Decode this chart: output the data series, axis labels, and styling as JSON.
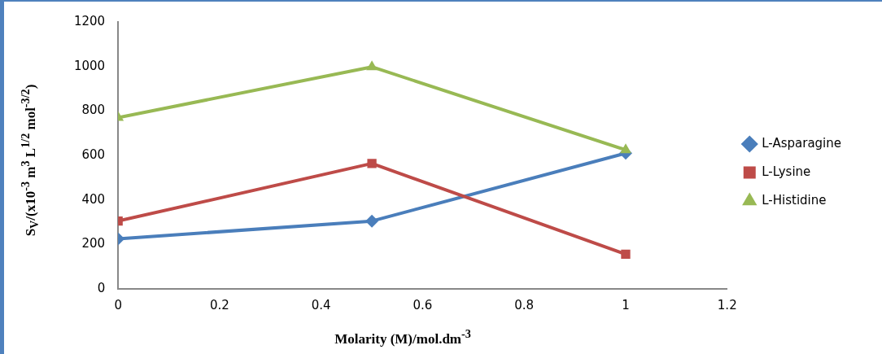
{
  "chart_data": {
    "type": "line",
    "xlabel": "Molarity (M)/mol.dm$^{-3}$",
    "ylabel": "S$_{V}$/(x10$^{-3}$ m$^{3}$ L$^{1/2}$ mol$^{-3/2}$)",
    "x": [
      0,
      0.5,
      1
    ],
    "series": [
      {
        "name": "L-Asparagine",
        "color": "#4a7ebb",
        "marker": "diamond",
        "values": [
          225,
          305,
          610
        ]
      },
      {
        "name": "L-Lysine",
        "color": "#be4b48",
        "marker": "square",
        "values": [
          305,
          564,
          156
        ]
      },
      {
        "name": "L-Histidine",
        "color": "#98b954",
        "marker": "triangle",
        "values": [
          770,
          998,
          625
        ]
      }
    ],
    "xlim": [
      0,
      1.2
    ],
    "xticks": [
      0,
      0.2,
      0.4,
      0.6,
      0.8,
      1,
      1.2
    ],
    "ylim": [
      0,
      1200
    ],
    "yticks": [
      0,
      200,
      400,
      600,
      800,
      1000,
      1200
    ],
    "grid": false,
    "legend": "right",
    "line_style": "solid"
  }
}
